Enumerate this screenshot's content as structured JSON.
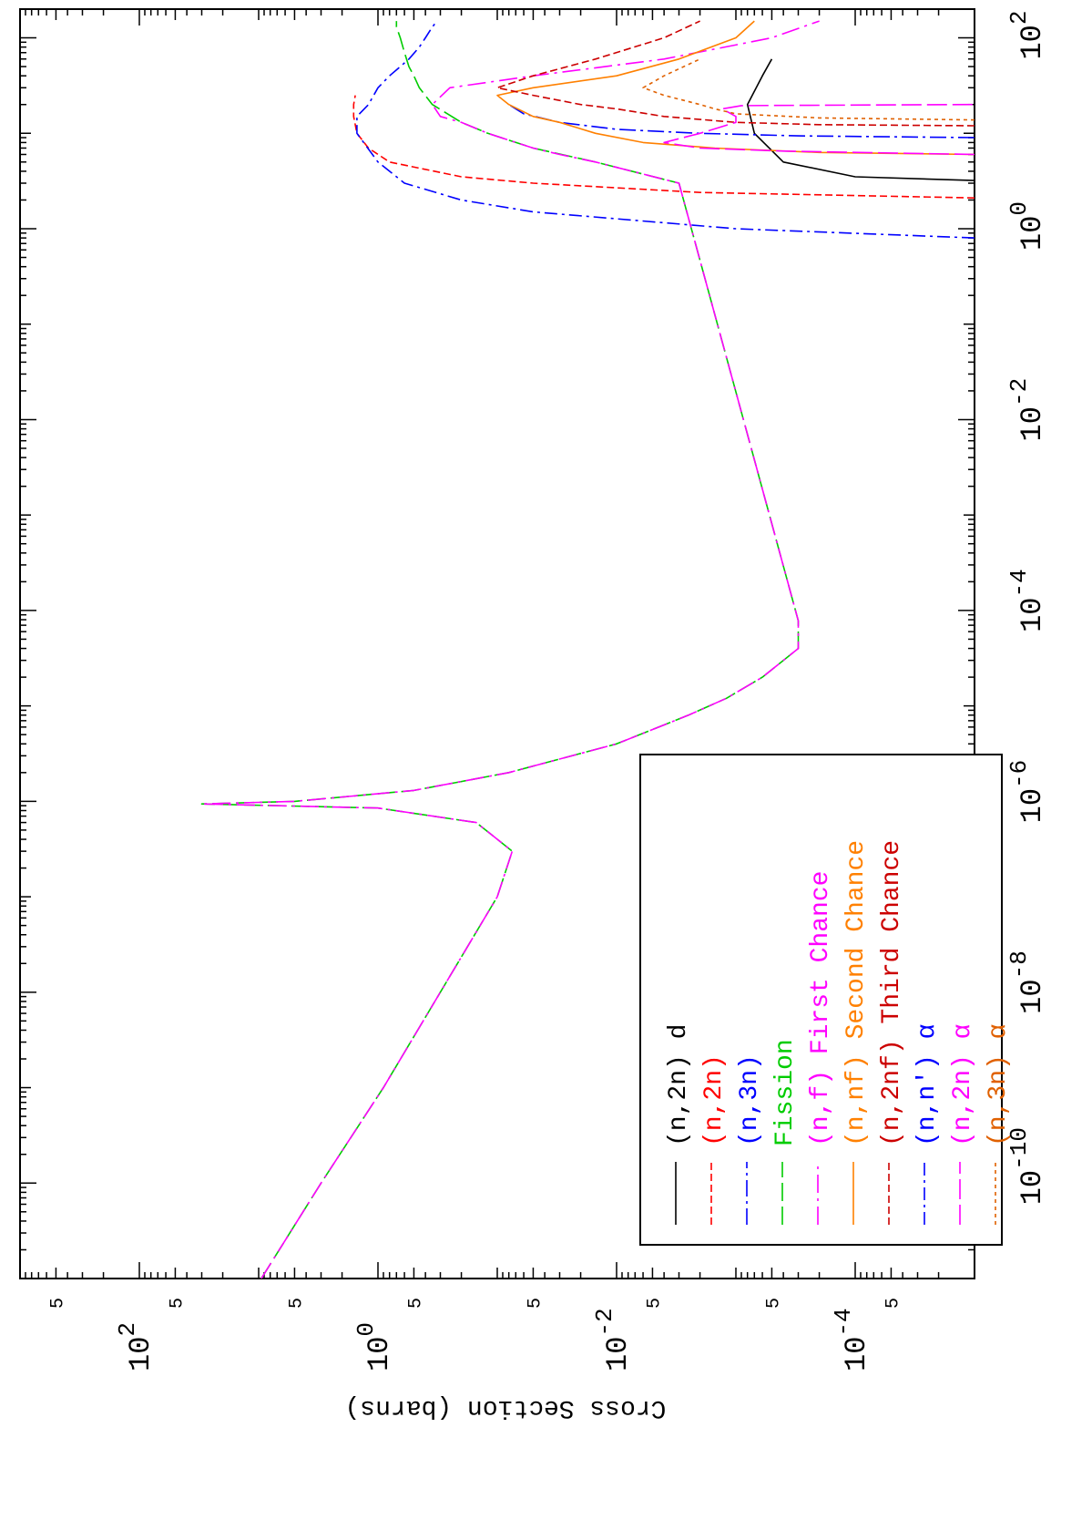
{
  "chart_data": {
    "type": "line",
    "orientation": "rotated-90-clockwise",
    "ylabel": "Cross Section (barns)",
    "xlabel": "",
    "title": "",
    "x_scale": "log",
    "y_scale": "log",
    "xlim": [
      1e-11,
      200
    ],
    "ylim": [
      1e-05,
      1000
    ],
    "grid": false,
    "legend_position": "bottom-left",
    "x_major_ticks": [
      {
        "value": 1e-10,
        "base": "10",
        "exp": "-10"
      },
      {
        "value": 1e-08,
        "base": "10",
        "exp": "-8"
      },
      {
        "value": 1e-06,
        "base": "10",
        "exp": "-6"
      },
      {
        "value": 0.0001,
        "base": "10",
        "exp": "-4"
      },
      {
        "value": 0.01,
        "base": "10",
        "exp": "-2"
      },
      {
        "value": 1,
        "base": "10",
        "exp": "0"
      },
      {
        "value": 100,
        "base": "10",
        "exp": "2"
      }
    ],
    "y_major_ticks": [
      {
        "value": 0.0001,
        "base": "10",
        "exp": "-4"
      },
      {
        "value": 0.01,
        "base": "10",
        "exp": "-2"
      },
      {
        "value": 1,
        "base": "10",
        "exp": "0"
      },
      {
        "value": 100,
        "base": "10",
        "exp": "2"
      }
    ],
    "y_minor_label": "5",
    "y_minor_label_values": [
      5e-05,
      0.0005,
      0.005,
      0.05,
      0.5,
      5,
      50,
      500
    ],
    "series": [
      {
        "name": "(n,2n) d",
        "color": "#000000",
        "dash": "",
        "x": [
          3.2,
          3.5,
          5,
          10,
          20,
          40,
          60
        ],
        "y": [
          1e-05,
          0.0001,
          0.0004,
          0.0007,
          0.0008,
          0.0006,
          0.0005
        ]
      },
      {
        "name": "(n,2n)",
        "color": "#ff0000",
        "dash": "8 4",
        "x": [
          2.1,
          2.4,
          3,
          3.5,
          5,
          7,
          10,
          15,
          20,
          25
        ],
        "y": [
          1e-05,
          0.002,
          0.05,
          0.2,
          0.8,
          1.2,
          1.5,
          1.6,
          1.6,
          1.55
        ]
      },
      {
        "name": "(n,3n)",
        "color": "#0000ff",
        "dash": "18 5 3 5",
        "x": [
          9,
          9.4,
          10,
          11,
          13,
          16,
          20
        ],
        "y": [
          1e-05,
          0.0003,
          0.002,
          0.01,
          0.03,
          0.06,
          0.08
        ]
      },
      {
        "name": "Fission",
        "color": "#00cc00",
        "dash": "20 6",
        "x": [
          1e-11,
          1e-10,
          1e-09,
          1e-08,
          1e-07,
          3e-07,
          6e-07,
          8.5e-07,
          9.4e-07,
          1e-06,
          1.3e-06,
          2e-06,
          4e-06,
          8e-06,
          1.2e-05,
          2e-05,
          3e-05,
          4e-05,
          5.5e-05,
          6.2e-05,
          7e-05,
          7.8e-05,
          3,
          5,
          7,
          10,
          13,
          20,
          30,
          40,
          50,
          70,
          100,
          130,
          150
        ],
        "y": [
          9.5,
          3,
          0.9,
          0.3,
          0.1,
          0.075,
          0.15,
          1,
          30,
          5,
          0.5,
          0.08,
          0.01,
          0.0025,
          0.0012,
          0.0006,
          0.0004,
          0.0003,
          0.0003,
          0.0003,
          0.0003,
          0.0003,
          0.003,
          0.015,
          0.05,
          0.12,
          0.2,
          0.35,
          0.45,
          0.5,
          0.55,
          0.6,
          0.65,
          0.7,
          0.7
        ]
      },
      {
        "name": "(n,f) First Chance",
        "color": "#ff00ff",
        "dash": "20 6 3 6",
        "x": [
          1e-11,
          1e-10,
          1e-09,
          1e-08,
          1e-07,
          3e-07,
          6e-07,
          8.5e-07,
          9.4e-07,
          1e-06,
          1.3e-06,
          2e-06,
          4e-06,
          8e-06,
          1.2e-05,
          2e-05,
          3e-05,
          4e-05,
          5.5e-05,
          6.2e-05,
          7e-05,
          7.8e-05,
          3,
          5,
          6,
          7,
          10,
          13,
          15,
          20,
          30,
          40,
          60,
          100,
          150
        ],
        "y": [
          9.5,
          3,
          0.9,
          0.3,
          0.1,
          0.075,
          0.15,
          1,
          30,
          5,
          0.5,
          0.08,
          0.01,
          0.0025,
          0.0012,
          0.0006,
          0.0004,
          0.0003,
          0.0003,
          0.0003,
          0.0003,
          0.0003,
          0.003,
          0.015,
          0.03,
          0.05,
          0.12,
          0.2,
          0.3,
          0.35,
          0.25,
          0.05,
          0.004,
          0.0005,
          0.0002
        ]
      },
      {
        "name": "(n,nf) Second Chance",
        "color": "#ff8000",
        "dash": "",
        "x": [
          6,
          6.3,
          7,
          8,
          10,
          13,
          15,
          20,
          25,
          30,
          40,
          60,
          100,
          150
        ],
        "y": [
          1e-05,
          0.0002,
          0.0015,
          0.006,
          0.015,
          0.03,
          0.05,
          0.08,
          0.1,
          0.05,
          0.01,
          0.003,
          0.001,
          0.0007
        ]
      },
      {
        "name": "(n,2nf) Third Chance",
        "color": "#cc0000",
        "dash": "8 4",
        "x": [
          12,
          12.3,
          13,
          15,
          18,
          20,
          25,
          30,
          40,
          60,
          100,
          150
        ],
        "y": [
          1e-05,
          0.0002,
          0.001,
          0.004,
          0.01,
          0.02,
          0.05,
          0.1,
          0.05,
          0.015,
          0.004,
          0.002
        ]
      },
      {
        "name": "(n,n') α",
        "color": "#0000ff",
        "dash": "14 5 3 5",
        "x": [
          0.8,
          1,
          1.5,
          2,
          3,
          5,
          10,
          15,
          20,
          30,
          40,
          50,
          60,
          80,
          100,
          130,
          150
        ],
        "y": [
          1e-05,
          0.001,
          0.05,
          0.2,
          0.6,
          1.0,
          1.5,
          1.5,
          1.2,
          1.0,
          0.8,
          0.65,
          0.55,
          0.45,
          0.4,
          0.35,
          0.32
        ]
      },
      {
        "name": "(n,2n) α",
        "color": "#ff00ff",
        "dash": "22 6",
        "x": [
          6,
          6.5,
          7,
          8,
          10,
          13,
          15,
          18,
          19.5,
          20
        ],
        "y": [
          1e-05,
          0.0004,
          0.002,
          0.004,
          0.002,
          0.001,
          0.001,
          0.0013,
          0.0009,
          1e-05
        ]
      },
      {
        "name": "(n,3n) α",
        "color": "#e06000",
        "dash": "4 4",
        "x": [
          13.8,
          14.5,
          16,
          18,
          20,
          25,
          30,
          40,
          60
        ],
        "y": [
          1e-05,
          0.0002,
          0.001,
          0.0015,
          0.002,
          0.004,
          0.006,
          0.004,
          0.002
        ]
      }
    ]
  }
}
